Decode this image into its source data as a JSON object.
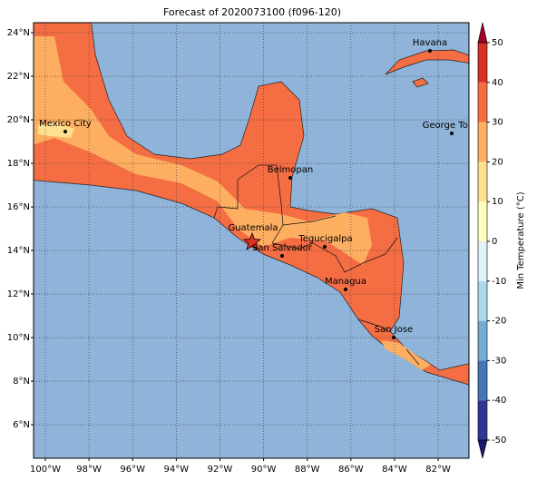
{
  "map": {
    "title": "Forecast of 2020073100 (f096-120)",
    "lon_lim": [
      -100.54,
      -80.59
    ],
    "lat_lim": [
      4.46,
      24.46
    ],
    "lat_ticks": [
      {
        "value": 6,
        "label": "6°N"
      },
      {
        "value": 8,
        "label": "8°N"
      },
      {
        "value": 10,
        "label": "10°N"
      },
      {
        "value": 12,
        "label": "12°N"
      },
      {
        "value": 14,
        "label": "14°N"
      },
      {
        "value": 16,
        "label": "16°N"
      },
      {
        "value": 18,
        "label": "18°N"
      },
      {
        "value": 20,
        "label": "20°N"
      },
      {
        "value": 22,
        "label": "22°N"
      },
      {
        "value": 24,
        "label": "24°N"
      }
    ],
    "lon_ticks": [
      {
        "value": -100,
        "label": "100°W"
      },
      {
        "value": -98,
        "label": "98°W"
      },
      {
        "value": -96,
        "label": "96°W"
      },
      {
        "value": -94,
        "label": "94°W"
      },
      {
        "value": -92,
        "label": "92°W"
      },
      {
        "value": -90,
        "label": "90°W"
      },
      {
        "value": -88,
        "label": "88°W"
      },
      {
        "value": -86,
        "label": "86°W"
      },
      {
        "value": -84,
        "label": "84°W"
      },
      {
        "value": -82,
        "label": "82°W"
      }
    ],
    "grid": true,
    "cities": [
      "Havana",
      "Mexico City",
      "George Town",
      "Belmopan",
      "Guatemala",
      "San Salvador",
      "Tegucigalpa",
      "Managua",
      "San Jose"
    ],
    "colorbar": {
      "label": "Min Temperature (°C)",
      "ticks": [
        -50,
        -40,
        -30,
        -20,
        -10,
        0,
        10,
        20,
        30,
        40,
        50
      ],
      "colors": [
        "#313695",
        "#4575b4",
        "#74add1",
        "#abd9e9",
        "#e0f3f8",
        "#ffffbf",
        "#fee090",
        "#fdae61",
        "#f46d43",
        "#d73027"
      ],
      "extend_colors": [
        "#1a1a6e",
        "#a50026"
      ]
    }
  }
}
